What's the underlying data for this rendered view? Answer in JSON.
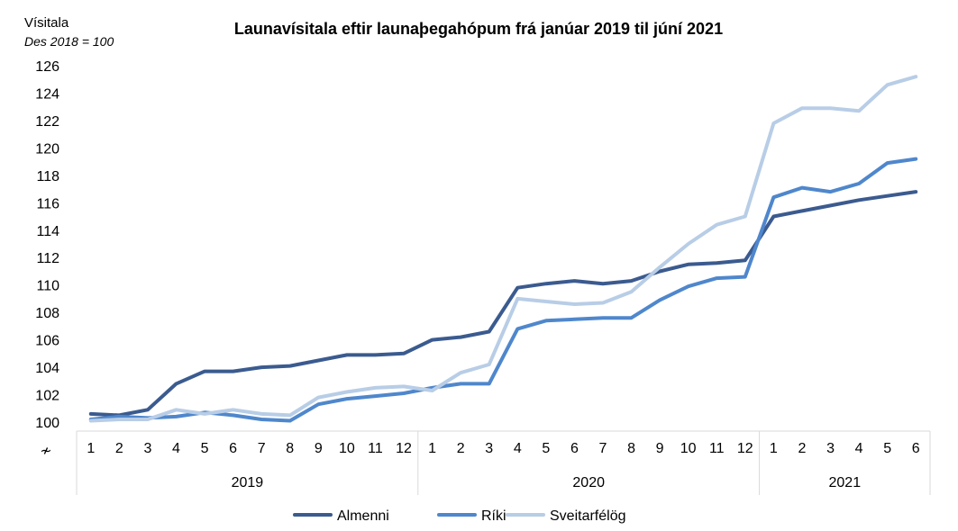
{
  "chart_data": {
    "type": "line",
    "title": "Launavísitala eftir launaþegahópum frá janúar 2019 til júní 2021",
    "ylabel": "Vísitala",
    "ylabel_sub": "Des 2018 = 100",
    "ylim": [
      100,
      126
    ],
    "yticks": [
      100,
      102,
      104,
      106,
      108,
      110,
      112,
      114,
      116,
      118,
      120,
      122,
      124,
      126
    ],
    "axis_break_symbol": "≁",
    "years": [
      {
        "label": "2019",
        "months": 12
      },
      {
        "label": "2020",
        "months": 12
      },
      {
        "label": "2021",
        "months": 6
      }
    ],
    "x": [
      "1",
      "2",
      "3",
      "4",
      "5",
      "6",
      "7",
      "8",
      "9",
      "10",
      "11",
      "12",
      "1",
      "2",
      "3",
      "4",
      "5",
      "6",
      "7",
      "8",
      "9",
      "10",
      "11",
      "12",
      "1",
      "2",
      "3",
      "4",
      "5",
      "6"
    ],
    "grid": false,
    "legend_position": "bottom",
    "series": [
      {
        "name": "Almenni",
        "color": "#3b5b8f",
        "values": [
          100.6,
          100.5,
          100.9,
          102.8,
          103.7,
          103.7,
          104.0,
          104.1,
          104.5,
          104.9,
          104.9,
          105.0,
          106.0,
          106.2,
          106.6,
          109.8,
          110.1,
          110.3,
          110.1,
          110.3,
          111.0,
          111.5,
          111.6,
          111.8,
          115.0,
          115.4,
          115.8,
          116.2,
          116.5,
          116.8
        ]
      },
      {
        "name": "Ríki",
        "color": "#4f87cc",
        "values": [
          100.2,
          100.4,
          100.3,
          100.4,
          100.7,
          100.5,
          100.2,
          100.1,
          101.3,
          101.7,
          101.9,
          102.1,
          102.5,
          102.8,
          102.8,
          106.8,
          107.4,
          107.5,
          107.6,
          107.6,
          108.9,
          109.9,
          110.5,
          110.6,
          116.4,
          117.1,
          116.8,
          117.4,
          118.9,
          119.2
        ]
      },
      {
        "name": "Sveitarfélög",
        "color": "#b8cde6",
        "values": [
          100.1,
          100.2,
          100.2,
          100.9,
          100.6,
          100.9,
          100.6,
          100.5,
          101.8,
          102.2,
          102.5,
          102.6,
          102.3,
          103.6,
          104.2,
          109.0,
          108.8,
          108.6,
          108.7,
          109.5,
          111.3,
          113.0,
          114.4,
          115.0,
          121.8,
          122.9,
          122.9,
          122.7,
          124.6,
          125.2
        ]
      }
    ]
  }
}
